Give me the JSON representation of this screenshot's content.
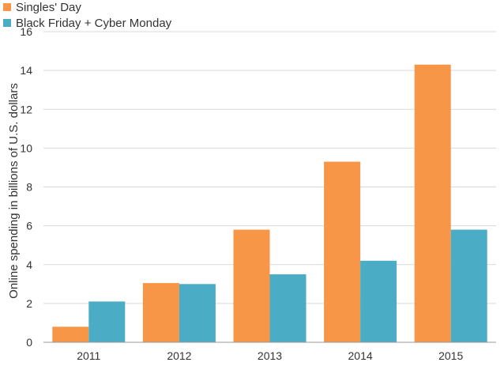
{
  "chart_data": {
    "type": "bar",
    "title": "",
    "xlabel": "",
    "ylabel": "Online spending in billions of U.S. dollars",
    "categories": [
      "2011",
      "2012",
      "2013",
      "2014",
      "2015"
    ],
    "series": [
      {
        "name": "Singles' Day",
        "color": "#f79646",
        "values": [
          0.8,
          3.05,
          5.8,
          9.3,
          14.3
        ]
      },
      {
        "name": "Black Friday + Cyber Monday",
        "color": "#4bacc6",
        "values": [
          2.1,
          3.0,
          3.5,
          4.2,
          5.8
        ]
      }
    ],
    "ylim": [
      0,
      16
    ],
    "yticks": [
      0,
      2,
      4,
      6,
      8,
      10,
      12,
      14,
      16
    ],
    "grid": true,
    "legend_position": "top-left"
  }
}
